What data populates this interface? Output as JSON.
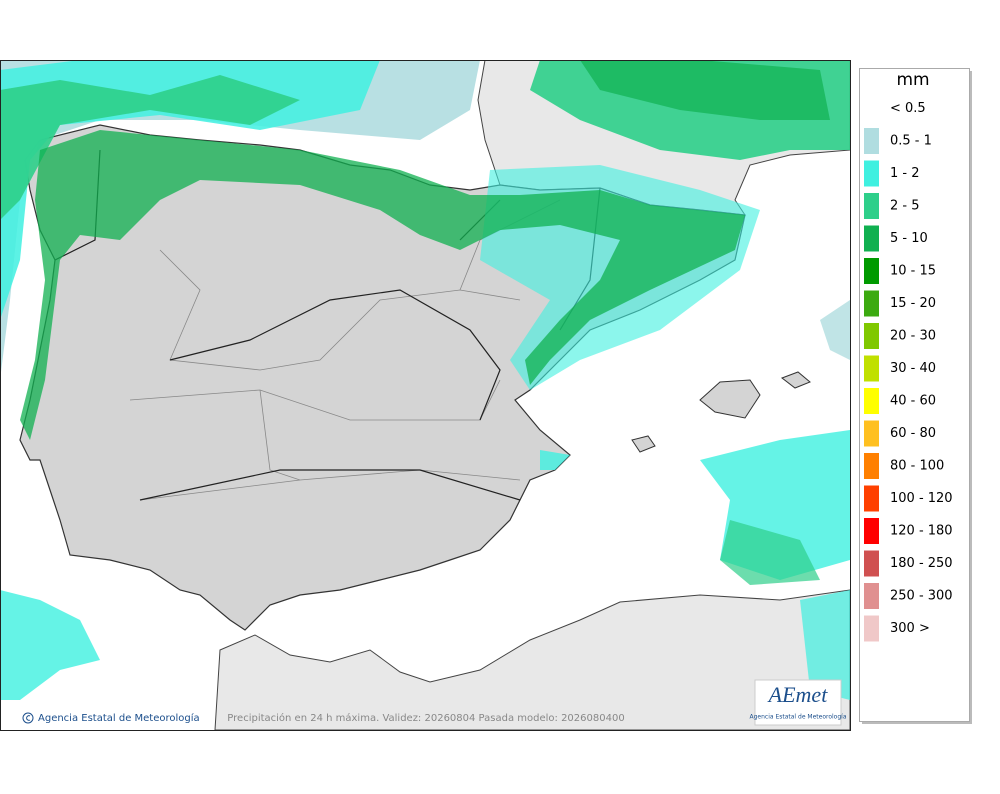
{
  "legend": {
    "title": "mm",
    "items": [
      {
        "label": "< 0.5",
        "color": "#ffffff"
      },
      {
        "label": "0.5 - 1",
        "color": "#b0dde0"
      },
      {
        "label": "1 - 2",
        "color": "#3ff0e0"
      },
      {
        "label": "2 - 5",
        "color": "#2ecf8a"
      },
      {
        "label": "5 - 10",
        "color": "#10b050"
      },
      {
        "label": "10 - 15",
        "color": "#009a00"
      },
      {
        "label": "15 - 20",
        "color": "#3caa10"
      },
      {
        "label": "20 - 30",
        "color": "#80c800"
      },
      {
        "label": "30 - 40",
        "color": "#c0e000"
      },
      {
        "label": "40 - 60",
        "color": "#ffff00"
      },
      {
        "label": "60 - 80",
        "color": "#ffc020"
      },
      {
        "label": "80 - 100",
        "color": "#ff8000"
      },
      {
        "label": "100 - 120",
        "color": "#ff4000"
      },
      {
        "label": "120 - 180",
        "color": "#ff0000"
      },
      {
        "label": "180 - 250",
        "color": "#d05050"
      },
      {
        "label": "250 - 300",
        "color": "#e09090"
      },
      {
        "label": "300 >",
        "color": "#f0c8c8"
      }
    ]
  },
  "footer": {
    "agency": "Agencia Estatal de Meteorología",
    "caption": "Precipitación en 24 h máxima. Validez: 20260804 Pasada modelo: 2026080400"
  },
  "logo": {
    "name": "AEmet",
    "subtitle": "Agencia Estatal de Meteorología"
  }
}
